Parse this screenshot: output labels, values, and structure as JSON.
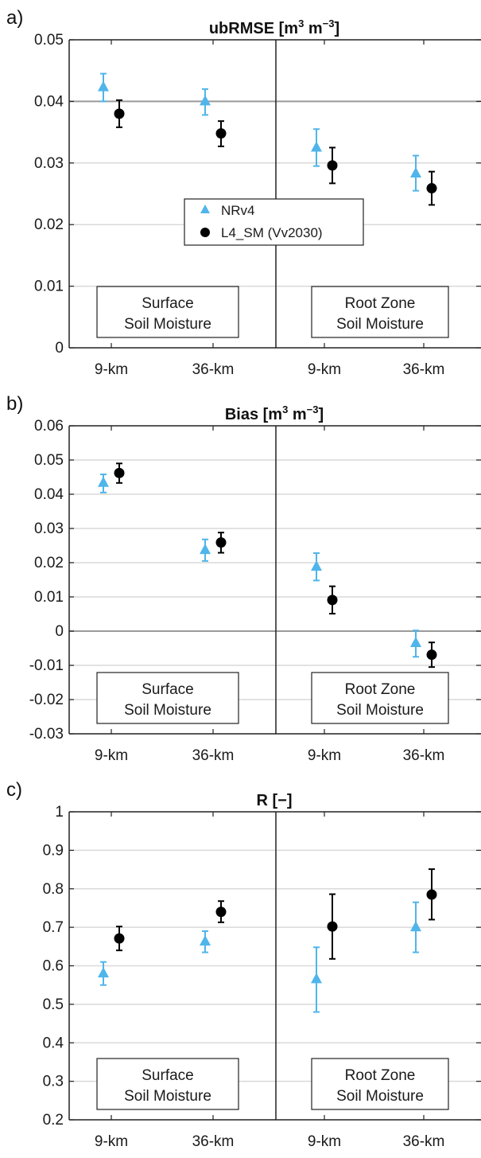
{
  "colors": {
    "nrv4": "#4fb5ea",
    "l4sm": "#000000",
    "grid": "#d9d9d9",
    "zero_line": "#9a9a9a",
    "axis": "#222222"
  },
  "legend": {
    "entries": [
      "NRv4",
      "L4_SM (Vv2030)"
    ],
    "markers": [
      "triangle",
      "circle"
    ]
  },
  "chart_data": [
    {
      "type": "scatter",
      "panel_label": "a)",
      "title": "ubRMSE [m3 m−3]",
      "title_main": "ubRMSE [m",
      "title_sup1": "3",
      "title_mid": " m",
      "title_sup2": "−3",
      "title_end": "]",
      "categories": [
        "9-km",
        "36-km",
        "9-km",
        "36-km"
      ],
      "groups": [
        "Surface Soil Moisture",
        "Root Zone Soil Moisture"
      ],
      "group_box_labels": [
        [
          "Surface",
          "Soil Moisture"
        ],
        [
          "Root Zone",
          "Soil Moisture"
        ]
      ],
      "ylim": [
        0,
        0.05
      ],
      "yticks": [
        0,
        0.01,
        0.02,
        0.03,
        0.04,
        0.05
      ],
      "ytick_labels": [
        "0",
        "0.01",
        "0.02",
        "0.03",
        "0.04",
        "0.05"
      ],
      "reference_line": 0.04,
      "grid": true,
      "has_legend": true,
      "legend_position": "center",
      "series": [
        {
          "name": "NRv4",
          "marker": "triangle",
          "values": [
            0.0423,
            0.04,
            0.0325,
            0.0283
          ],
          "err_low": [
            0.04,
            0.0378,
            0.0295,
            0.0255
          ],
          "err_high": [
            0.0445,
            0.042,
            0.0355,
            0.0312
          ]
        },
        {
          "name": "L4_SM (Vv2030)",
          "marker": "circle",
          "values": [
            0.038,
            0.0348,
            0.0296,
            0.0259
          ],
          "err_low": [
            0.0358,
            0.0327,
            0.0267,
            0.0232
          ],
          "err_high": [
            0.0402,
            0.0368,
            0.0325,
            0.0286
          ]
        }
      ]
    },
    {
      "type": "scatter",
      "panel_label": "b)",
      "title": "Bias [m3 m−3]",
      "title_main": "Bias [m",
      "title_sup1": "3",
      "title_mid": " m",
      "title_sup2": "−3",
      "title_end": "]",
      "categories": [
        "9-km",
        "36-km",
        "9-km",
        "36-km"
      ],
      "groups": [
        "Surface Soil Moisture",
        "Root Zone Soil Moisture"
      ],
      "group_box_labels": [
        [
          "Surface",
          "Soil Moisture"
        ],
        [
          "Root Zone",
          "Soil Moisture"
        ]
      ],
      "ylim": [
        -0.03,
        0.06
      ],
      "yticks": [
        -0.03,
        -0.02,
        -0.01,
        0,
        0.01,
        0.02,
        0.03,
        0.04,
        0.05,
        0.06
      ],
      "ytick_labels": [
        "-0.03",
        "-0.02",
        "-0.01",
        "0",
        "0.01",
        "0.02",
        "0.03",
        "0.04",
        "0.05",
        "0.06"
      ],
      "reference_line": 0,
      "grid": true,
      "has_legend": false,
      "series": [
        {
          "name": "NRv4",
          "marker": "triangle",
          "values": [
            0.0433,
            0.0237,
            0.0188,
            -0.0035
          ],
          "err_low": [
            0.0405,
            0.0205,
            0.0148,
            -0.0075
          ],
          "err_high": [
            0.0458,
            0.0268,
            0.0228,
            0.0002
          ]
        },
        {
          "name": "L4_SM (Vv2030)",
          "marker": "circle",
          "values": [
            0.0462,
            0.0259,
            0.0091,
            -0.0069
          ],
          "err_low": [
            0.0433,
            0.0229,
            0.0051,
            -0.0105
          ],
          "err_high": [
            0.049,
            0.0288,
            0.0131,
            -0.0033
          ]
        }
      ]
    },
    {
      "type": "scatter",
      "panel_label": "c)",
      "title": "R [−]",
      "title_main": "R [−]",
      "title_sup1": "",
      "title_mid": "",
      "title_sup2": "",
      "title_end": "",
      "categories": [
        "9-km",
        "36-km",
        "9-km",
        "36-km"
      ],
      "groups": [
        "Surface Soil Moisture",
        "Root Zone Soil Moisture"
      ],
      "group_box_labels": [
        [
          "Surface",
          "Soil Moisture"
        ],
        [
          "Root Zone",
          "Soil Moisture"
        ]
      ],
      "ylim": [
        0.2,
        1
      ],
      "yticks": [
        0.2,
        0.3,
        0.4,
        0.5,
        0.6,
        0.7,
        0.8,
        0.9,
        1
      ],
      "ytick_labels": [
        "0.2",
        "0.3",
        "0.4",
        "0.5",
        "0.6",
        "0.7",
        "0.8",
        "0.9",
        "1"
      ],
      "reference_line": null,
      "grid": true,
      "has_legend": false,
      "series": [
        {
          "name": "NRv4",
          "marker": "triangle",
          "values": [
            0.58,
            0.663,
            0.565,
            0.7
          ],
          "err_low": [
            0.55,
            0.635,
            0.48,
            0.635
          ],
          "err_high": [
            0.61,
            0.69,
            0.648,
            0.765
          ]
        },
        {
          "name": "L4_SM (Vv2030)",
          "marker": "circle",
          "values": [
            0.671,
            0.74,
            0.702,
            0.785
          ],
          "err_low": [
            0.64,
            0.713,
            0.618,
            0.72
          ],
          "err_high": [
            0.702,
            0.768,
            0.786,
            0.851
          ]
        }
      ]
    }
  ]
}
